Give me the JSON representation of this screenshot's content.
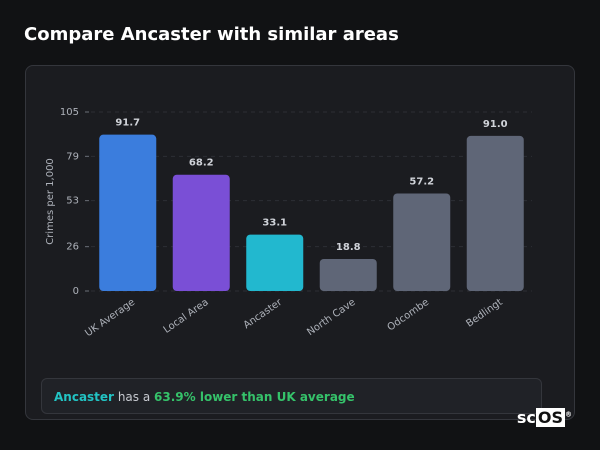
{
  "chart_data": {
    "type": "bar",
    "title": "Compare Ancaster with similar areas",
    "y_label": "Crimes per 1,000",
    "categories": [
      "UK Average",
      "Local Area",
      "Ancaster",
      "North Cave",
      "Odcombe",
      "Bedlingt"
    ],
    "values": [
      91.7,
      68.2,
      33.1,
      18.8,
      57.2,
      91.0
    ],
    "value_labels": [
      "91.7",
      "68.2",
      "33.1",
      "18.8",
      "57.2",
      "91.0"
    ],
    "colors": [
      "#3b7ddd",
      "#7a4fd6",
      "#22b8cf",
      "#5f6677",
      "#5f6677",
      "#5f6677"
    ],
    "ylim": [
      0,
      105
    ],
    "yticks": [
      0,
      26,
      53,
      79,
      105
    ],
    "grid": true
  },
  "summary": {
    "area": "Ancaster",
    "connector": "has a",
    "comparison": "63.9% lower than UK average"
  },
  "logo": {
    "prefix": "sc",
    "suffix": "OS",
    "mark": "®"
  }
}
